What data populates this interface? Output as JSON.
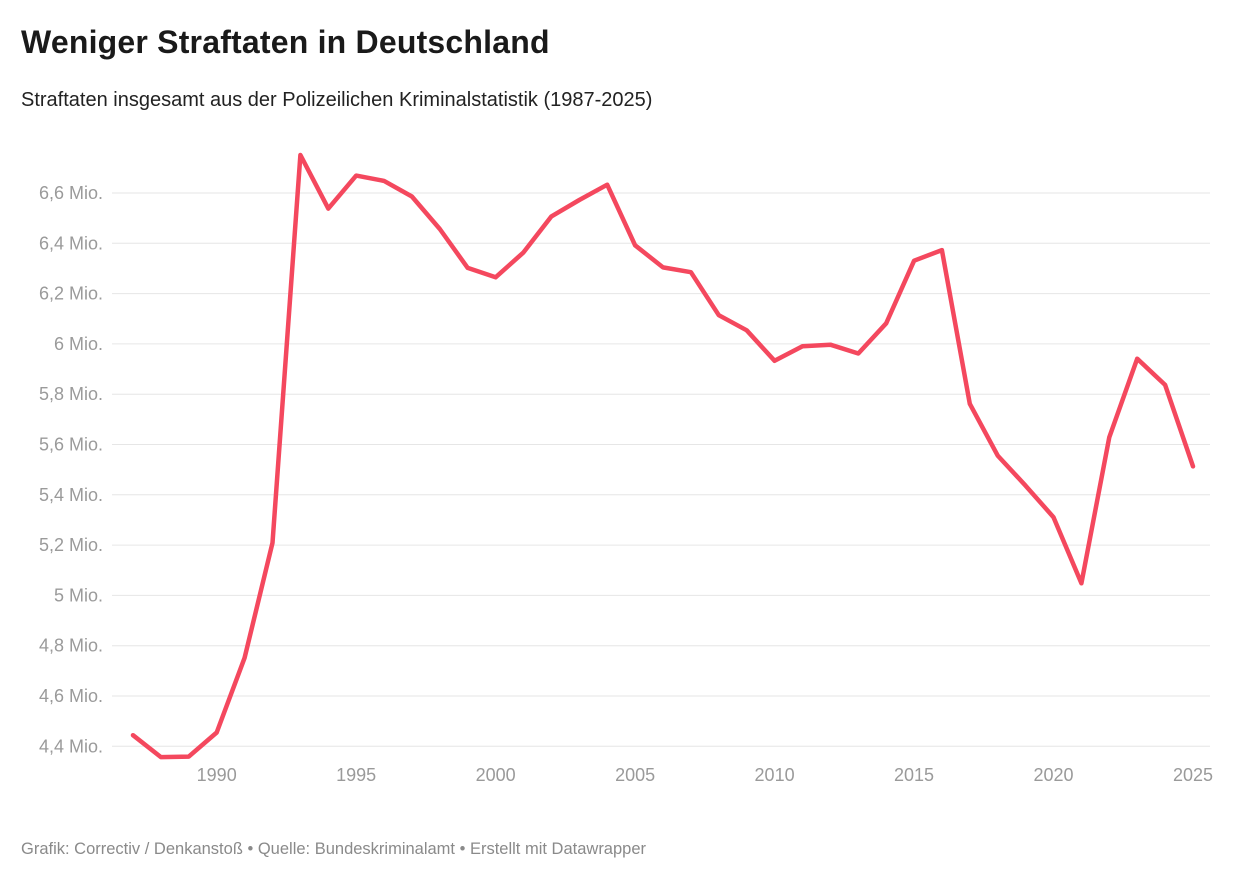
{
  "header": {
    "title": "Weniger Straftaten in Deutschland",
    "subtitle": "Straftaten insgesamt aus der Polizeilichen Kriminalstatistik (1987-2025)"
  },
  "footer": {
    "credit": "Grafik: Correctiv / Denkanstoß • Quelle: Bundeskriminalamt • Erstellt mit Datawrapper"
  },
  "colors": {
    "line": "#f4485e",
    "grid": "#e6e6e6",
    "tick_text": "#9a9a9a",
    "title_text": "#1a1a1a",
    "footer_text": "#8a8a8a",
    "background": "#ffffff"
  },
  "chart_data": {
    "type": "line",
    "title": "Weniger Straftaten in Deutschland",
    "subtitle": "Straftaten insgesamt aus der Polizeilichen Kriminalstatistik (1987-2025)",
    "series_name": "Straftaten insgesamt (Mio.)",
    "unit": "Mio.",
    "grid": true,
    "legend": "none",
    "x": [
      1987,
      1988,
      1989,
      1990,
      1991,
      1992,
      1993,
      1994,
      1995,
      1996,
      1997,
      1998,
      1999,
      2000,
      2001,
      2002,
      2003,
      2004,
      2005,
      2006,
      2007,
      2008,
      2009,
      2010,
      2011,
      2012,
      2013,
      2014,
      2015,
      2016,
      2017,
      2018,
      2019,
      2020,
      2021,
      2022,
      2023,
      2024,
      2025
    ],
    "values_mio": [
      4.444,
      4.357,
      4.359,
      4.455,
      4.752,
      5.209,
      6.751,
      6.538,
      6.669,
      6.648,
      6.586,
      6.457,
      6.302,
      6.265,
      6.364,
      6.507,
      6.572,
      6.633,
      6.392,
      6.304,
      6.285,
      6.114,
      6.054,
      5.933,
      5.991,
      5.997,
      5.962,
      6.082,
      6.331,
      6.373,
      5.762,
      5.556,
      5.436,
      5.311,
      5.048,
      5.629,
      5.941,
      5.837,
      5.513
    ],
    "xlim": [
      1987,
      2025
    ],
    "ylim_gridlines": [
      4.4,
      6.6
    ],
    "xlabel": "",
    "ylabel": "",
    "y_ticks": [
      {
        "v": 6.6,
        "label": "6,6 Mio."
      },
      {
        "v": 6.4,
        "label": "6,4 Mio."
      },
      {
        "v": 6.2,
        "label": "6,2 Mio."
      },
      {
        "v": 6.0,
        "label": "6 Mio."
      },
      {
        "v": 5.8,
        "label": "5,8 Mio."
      },
      {
        "v": 5.6,
        "label": "5,6 Mio."
      },
      {
        "v": 5.4,
        "label": "5,4 Mio."
      },
      {
        "v": 5.2,
        "label": "5,2 Mio."
      },
      {
        "v": 5.0,
        "label": "5 Mio."
      },
      {
        "v": 4.8,
        "label": "4,8 Mio."
      },
      {
        "v": 4.6,
        "label": "4,6 Mio."
      },
      {
        "v": 4.4,
        "label": "4,4 Mio."
      }
    ],
    "x_ticks": [
      {
        "v": 1990,
        "label": "1990"
      },
      {
        "v": 1995,
        "label": "1995"
      },
      {
        "v": 2000,
        "label": "2000"
      },
      {
        "v": 2005,
        "label": "2005"
      },
      {
        "v": 2010,
        "label": "2010"
      },
      {
        "v": 2015,
        "label": "2015"
      },
      {
        "v": 2020,
        "label": "2020"
      },
      {
        "v": 2025,
        "label": "2025"
      }
    ]
  }
}
